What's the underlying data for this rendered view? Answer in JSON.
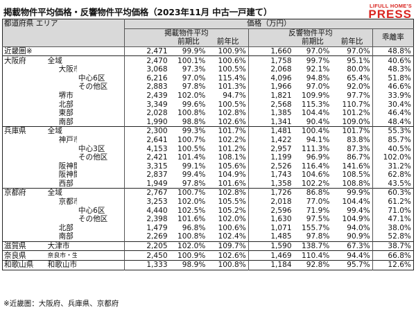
{
  "title": "掲載物件平均価格・反響物件平均価格（2023年11月 中古一戸建て）",
  "logo": {
    "line1": "LIFULL HOME'S",
    "line2": "PRESS"
  },
  "header": {
    "pref_area": "都道府県 エリア",
    "price": "価格（万円）",
    "listed": "掲載物件平均",
    "response": "反響物件平均",
    "prev_month": "前期比",
    "prev_year": "前年比",
    "divergence": "乖離率"
  },
  "rows": [
    {
      "c1": "近畿圏※",
      "c2": "",
      "c3": "",
      "l": "2,471",
      "l_m": "99.9%",
      "l_y": "100.9%",
      "r": "1,660",
      "r_m": "97.0%",
      "r_y": "97.0%",
      "d": "48.8%"
    },
    {
      "c1": "大阪府",
      "c2": "全域",
      "c3": "",
      "l": "2,470",
      "l_m": "100.1%",
      "l_y": "100.6%",
      "r": "1,758",
      "r_m": "99.7%",
      "r_y": "95.1%",
      "d": "40.6%"
    },
    {
      "c1": "",
      "c2": "大阪市",
      "c3": "",
      "l": "3,068",
      "l_m": "97.3%",
      "l_y": "100.5%",
      "r": "2,068",
      "r_m": "92.1%",
      "r_y": "80.0%",
      "d": "48.3%"
    },
    {
      "c1": "",
      "c2": "",
      "c3": "中心6区",
      "l": "6,216",
      "l_m": "97.0%",
      "l_y": "115.4%",
      "r": "4,096",
      "r_m": "94.8%",
      "r_y": "65.4%",
      "d": "51.8%"
    },
    {
      "c1": "",
      "c2": "",
      "c3": "その他区",
      "l": "2,883",
      "l_m": "97.8%",
      "l_y": "101.3%",
      "r": "1,966",
      "r_m": "97.0%",
      "r_y": "92.0%",
      "d": "46.6%"
    },
    {
      "c1": "",
      "c2": "堺市",
      "c3": "",
      "l": "2,439",
      "l_m": "102.0%",
      "l_y": "94.7%",
      "r": "1,821",
      "r_m": "109.9%",
      "r_y": "97.7%",
      "d": "33.9%"
    },
    {
      "c1": "",
      "c2": "北部",
      "c3": "",
      "l": "3,349",
      "l_m": "99.6%",
      "l_y": "100.5%",
      "r": "2,568",
      "r_m": "115.3%",
      "r_y": "110.7%",
      "d": "30.4%"
    },
    {
      "c1": "",
      "c2": "東部",
      "c3": "",
      "l": "2,028",
      "l_m": "100.8%",
      "l_y": "102.8%",
      "r": "1,385",
      "r_m": "104.4%",
      "r_y": "101.2%",
      "d": "46.4%"
    },
    {
      "c1": "",
      "c2": "南部",
      "c3": "",
      "l": "1,990",
      "l_m": "98.8%",
      "l_y": "102.6%",
      "r": "1,341",
      "r_m": "90.4%",
      "r_y": "109.0%",
      "d": "48.4%"
    },
    {
      "c1": "兵庫県",
      "c2": "全域",
      "c3": "",
      "l": "2,300",
      "l_m": "99.3%",
      "l_y": "101.7%",
      "r": "1,481",
      "r_m": "100.4%",
      "r_y": "101.7%",
      "d": "55.3%"
    },
    {
      "c1": "",
      "c2": "神戸市",
      "c3": "",
      "l": "2,641",
      "l_m": "100.7%",
      "l_y": "102.2%",
      "r": "1,422",
      "r_m": "94.1%",
      "r_y": "83.8%",
      "d": "85.7%"
    },
    {
      "c1": "",
      "c2": "",
      "c3": "中心3区",
      "l": "4,153",
      "l_m": "100.5%",
      "l_y": "101.2%",
      "r": "2,957",
      "r_m": "111.3%",
      "r_y": "87.3%",
      "d": "40.5%"
    },
    {
      "c1": "",
      "c2": "",
      "c3": "その他区",
      "l": "2,421",
      "l_m": "101.4%",
      "l_y": "108.1%",
      "r": "1,199",
      "r_m": "96.9%",
      "r_y": "86.7%",
      "d": "102.0%"
    },
    {
      "c1": "",
      "c2": "阪神間北部",
      "c3": "",
      "l": "3,315",
      "l_m": "99.1%",
      "l_y": "105.6%",
      "r": "2,526",
      "r_m": "116.4%",
      "r_y": "141.6%",
      "d": "31.2%"
    },
    {
      "c1": "",
      "c2": "阪神間南部",
      "c3": "",
      "l": "2,837",
      "l_m": "99.4%",
      "l_y": "104.9%",
      "r": "1,743",
      "r_m": "104.6%",
      "r_y": "108.5%",
      "d": "62.8%"
    },
    {
      "c1": "",
      "c2": "西部",
      "c3": "",
      "l": "1,949",
      "l_m": "97.8%",
      "l_y": "101.6%",
      "r": "1,358",
      "r_m": "102.2%",
      "r_y": "108.8%",
      "d": "43.5%"
    },
    {
      "c1": "京都府",
      "c2": "全域",
      "c3": "",
      "l": "2,767",
      "l_m": "100.7%",
      "l_y": "102.8%",
      "r": "1,726",
      "r_m": "86.8%",
      "r_y": "99.9%",
      "d": "60.3%"
    },
    {
      "c1": "",
      "c2": "京都市",
      "c3": "",
      "l": "3,253",
      "l_m": "102.0%",
      "l_y": "105.5%",
      "r": "2,018",
      "r_m": "77.0%",
      "r_y": "104.4%",
      "d": "61.2%"
    },
    {
      "c1": "",
      "c2": "",
      "c3": "中心6区",
      "l": "4,440",
      "l_m": "102.5%",
      "l_y": "105.2%",
      "r": "2,596",
      "r_m": "71.9%",
      "r_y": "99.4%",
      "d": "71.0%"
    },
    {
      "c1": "",
      "c2": "",
      "c3": "その他区",
      "l": "2,398",
      "l_m": "101.6%",
      "l_y": "102.0%",
      "r": "1,630",
      "r_m": "97.5%",
      "r_y": "104.9%",
      "d": "47.1%"
    },
    {
      "c1": "",
      "c2": "北部",
      "c3": "",
      "l": "1,479",
      "l_m": "96.8%",
      "l_y": "100.6%",
      "r": "1,071",
      "r_m": "155.7%",
      "r_y": "94.0%",
      "d": "38.0%"
    },
    {
      "c1": "",
      "c2": "南部",
      "c3": "",
      "l": "2,269",
      "l_m": "100.8%",
      "l_y": "102.4%",
      "r": "1,485",
      "r_m": "97.8%",
      "r_y": "90.9%",
      "d": "52.8%"
    },
    {
      "c1": "滋賀県",
      "c2": "大津市",
      "c3": "",
      "l": "2,205",
      "l_m": "102.0%",
      "l_y": "109.7%",
      "r": "1,590",
      "r_m": "138.7%",
      "r_y": "67.3%",
      "d": "38.7%"
    },
    {
      "c1": "奈良県",
      "c2": "奈良市・生駒市",
      "c3": "",
      "l": "2,450",
      "l_m": "100.9%",
      "l_y": "102.6%",
      "r": "1,469",
      "r_m": "110.4%",
      "r_y": "94.4%",
      "d": "66.8%"
    },
    {
      "c1": "和歌山県",
      "c2": "和歌山市",
      "c3": "",
      "l": "1,333",
      "l_m": "98.9%",
      "l_y": "100.8%",
      "r": "1,184",
      "r_m": "92.8%",
      "r_y": "95.7%",
      "d": "12.6%"
    }
  ],
  "footnote": "※近畿圏：大阪府、兵庫県、京都府"
}
